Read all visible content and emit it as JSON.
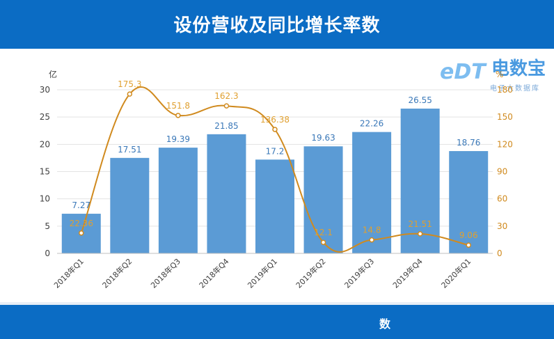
{
  "header": {
    "title": "设份营收及同比增长率数"
  },
  "logo": {
    "mark": "eDT",
    "name": "电数宝",
    "subtitle": "电子大数据库"
  },
  "footer": {
    "text": "数"
  },
  "colors": {
    "bar": "#5b9bd5",
    "line": "#e0a030",
    "line_stroke": "#d08a1e",
    "header": "#0b6cc4"
  },
  "chart_data": {
    "type": "bar",
    "categories": [
      "2018年Q1",
      "2018年Q2",
      "2018年Q3",
      "2018年Q4",
      "2019年Q1",
      "2019年Q2",
      "2019年Q3",
      "2019年Q4",
      "2020年Q1"
    ],
    "series": [
      {
        "values": [
          7.27,
          17.51,
          19.39,
          21.85,
          17.2,
          19.63,
          22.26,
          26.55,
          18.76
        ],
        "axis": "left",
        "kind": "bar",
        "labels": [
          "7.27",
          "17.51",
          "19.39",
          "21.85",
          "17.2",
          "19.63",
          "22.26",
          "26.55",
          "18.76"
        ]
      },
      {
        "values": [
          22.36,
          175.3,
          151.8,
          162.3,
          136.38,
          12.1,
          14.8,
          21.51,
          9.06
        ],
        "axis": "right",
        "kind": "line",
        "labels": [
          "22.36",
          "175.3",
          "151.8",
          "162.3",
          "136.38",
          "12.1",
          "14.8",
          "21.51",
          "9.06"
        ]
      }
    ],
    "y_left": {
      "unit": "亿",
      "min": 0,
      "max": 30,
      "ticks": [
        0,
        5,
        10,
        15,
        20,
        25,
        30
      ]
    },
    "y_right": {
      "unit": "%",
      "min": 0,
      "max": 180,
      "ticks": [
        0,
        30,
        60,
        90,
        120,
        150,
        180
      ]
    },
    "grid": true,
    "legend": "none"
  }
}
